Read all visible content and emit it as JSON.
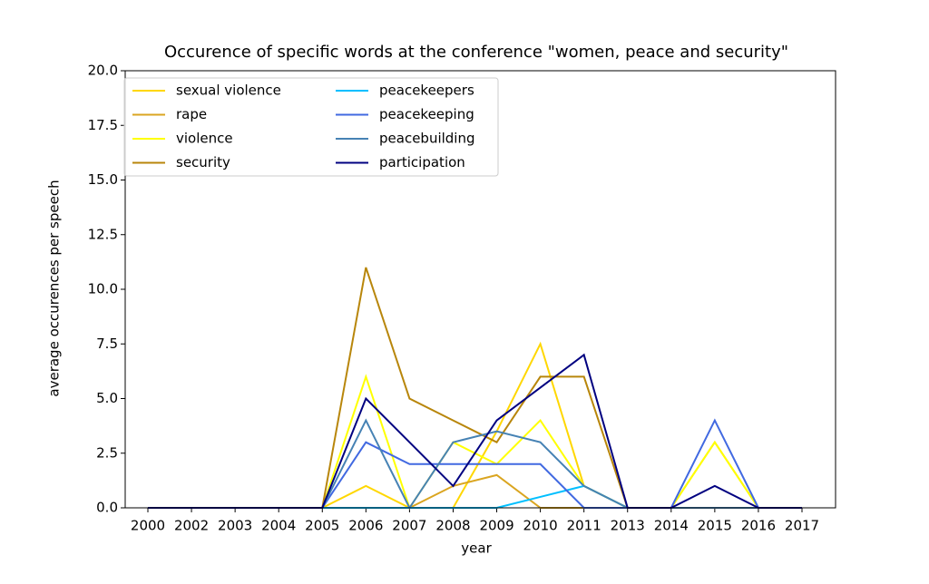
{
  "chart_data": {
    "type": "line",
    "title": "Occurence of specific words at the conference \"women, peace and security\"",
    "x_label": "year",
    "y_label": "average occurences per speech",
    "categories": [
      "2000",
      "2002",
      "2003",
      "2004",
      "2005",
      "2006",
      "2007",
      "2008",
      "2009",
      "2010",
      "2011",
      "2013",
      "2014",
      "2015",
      "2016",
      "2017"
    ],
    "ylim": [
      0,
      20
    ],
    "yticks": [
      {
        "value": 0,
        "label": "0.0"
      },
      {
        "value": 2.5,
        "label": "2.5"
      },
      {
        "value": 5,
        "label": "5.0"
      },
      {
        "value": 7.5,
        "label": "7.5"
      },
      {
        "value": 10,
        "label": "10.0"
      },
      {
        "value": 12.5,
        "label": "12.5"
      },
      {
        "value": 15,
        "label": "15.0"
      },
      {
        "value": 17.5,
        "label": "17.5"
      },
      {
        "value": 20,
        "label": "20.0"
      }
    ],
    "legend": "upper left",
    "series": [
      {
        "name": "sexual violence",
        "color": "#ffd700",
        "values": [
          0,
          0,
          0,
          0,
          0,
          1,
          0,
          0,
          3.5,
          7.5,
          1,
          0,
          0,
          3,
          0,
          0
        ]
      },
      {
        "name": "rape",
        "color": "#daa520",
        "values": [
          0,
          0,
          0,
          0,
          0,
          0,
          0,
          1,
          1.5,
          0,
          0,
          0,
          0,
          0,
          0,
          0
        ]
      },
      {
        "name": "violence",
        "color": "#ffff00",
        "values": [
          0,
          0,
          0,
          0,
          0,
          6,
          0,
          3,
          2,
          4,
          1,
          0,
          0,
          3,
          0,
          0
        ]
      },
      {
        "name": "security",
        "color": "#b8860b",
        "values": [
          0,
          0,
          0,
          0,
          0,
          11,
          5,
          4,
          3,
          6,
          6,
          0,
          0,
          0,
          0,
          0
        ]
      },
      {
        "name": "peacekeepers",
        "color": "#00bfff",
        "values": [
          0,
          0,
          0,
          0,
          0,
          0,
          0,
          0,
          0,
          0.5,
          1,
          0,
          0,
          0,
          0,
          0
        ]
      },
      {
        "name": "peacekeeping",
        "color": "#4169e1",
        "values": [
          0,
          0,
          0,
          0,
          0,
          3,
          2,
          2,
          2,
          2,
          0,
          0,
          0,
          4,
          0,
          0
        ]
      },
      {
        "name": "peacebuilding",
        "color": "#4682b4",
        "values": [
          0,
          0,
          0,
          0,
          0,
          4,
          0,
          3,
          3.5,
          3,
          1,
          0,
          0,
          0,
          0,
          0
        ]
      },
      {
        "name": "participation",
        "color": "#000080",
        "values": [
          0,
          0,
          0,
          0,
          0,
          5,
          3,
          1,
          4,
          5.5,
          7,
          0,
          0,
          1,
          0,
          0
        ]
      }
    ]
  }
}
